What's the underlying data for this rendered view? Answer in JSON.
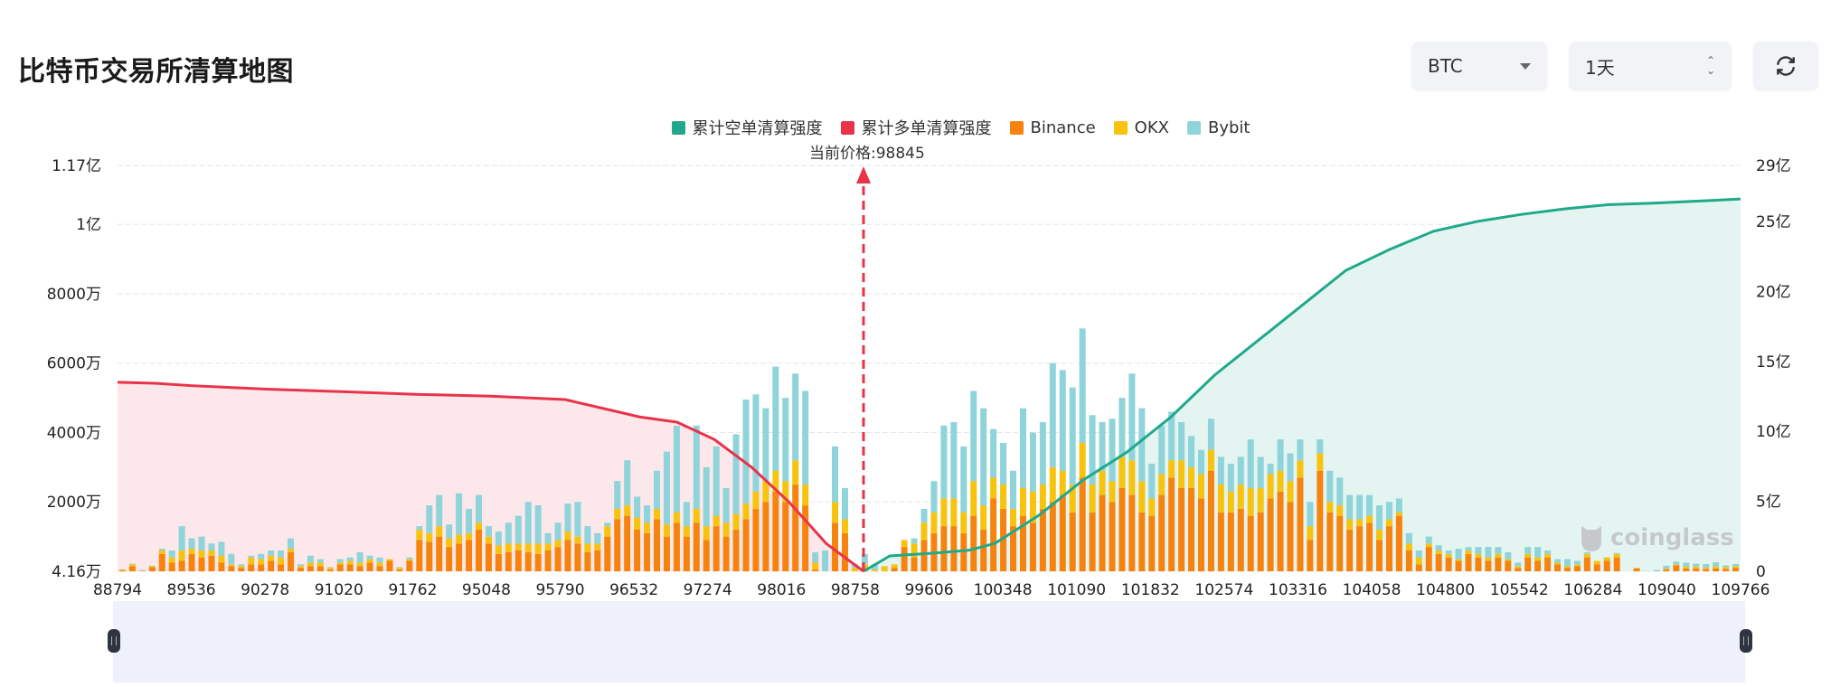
{
  "header": {
    "title": "比特币交易所清算地图",
    "coin_select": {
      "value": "BTC",
      "icon": "caret-down-icon"
    },
    "range_select": {
      "value": "1天",
      "icon": "stepper-icon"
    },
    "refresh_button": {
      "icon": "refresh-icon"
    }
  },
  "legend": [
    {
      "label": "累计空单清算强度",
      "color": "#1fa98a"
    },
    {
      "label": "累计多单清算强度",
      "color": "#e8334a"
    },
    {
      "label": "Binance",
      "color": "#f7830f"
    },
    {
      "label": "OKX",
      "color": "#f7c30f"
    },
    {
      "label": "Bybit",
      "color": "#8ed4da"
    }
  ],
  "current_price_label": "当前价格:98845",
  "watermark": "coinglass",
  "chart_data": {
    "type": "bar",
    "title": "比特币交易所清算地图",
    "current_price": 98845,
    "left_axis": {
      "ticks": [
        "4.16万",
        "2000万",
        "4000万",
        "6000万",
        "8000万",
        "1亿",
        "1.17亿"
      ],
      "range": [
        41600,
        117000000
      ]
    },
    "right_axis": {
      "ticks": [
        "0",
        "5亿",
        "10亿",
        "15亿",
        "20亿",
        "25亿",
        "29亿"
      ],
      "range": [
        0,
        2900000000
      ]
    },
    "x_tick_labels": [
      "88794",
      "89536",
      "90278",
      "91020",
      "91762",
      "95048",
      "95790",
      "96532",
      "97274",
      "98016",
      "98758",
      "99606",
      "100348",
      "101090",
      "101832",
      "102574",
      "103316",
      "104058",
      "104800",
      "105542",
      "106284",
      "109040",
      "109766"
    ],
    "stacked_series_units": "万 (10k USD)",
    "bars": {
      "binance": [
        0.3,
        1.5,
        0.1,
        1.2,
        5,
        2.5,
        3,
        5,
        4,
        4.5,
        2.5,
        1.5,
        1,
        2,
        2,
        3,
        2,
        5.5,
        1,
        1.5,
        1.5,
        0.5,
        2,
        2,
        1.5,
        2.5,
        1.5,
        3,
        0.5,
        3,
        9,
        8.5,
        10,
        7,
        8,
        9,
        12,
        8,
        5,
        5.5,
        6,
        5.5,
        5,
        6,
        7,
        9,
        8,
        5.5,
        6,
        10,
        15,
        16,
        12,
        11,
        15,
        10,
        14,
        10,
        14,
        9,
        13,
        10,
        12,
        15,
        18,
        20,
        23,
        20,
        25,
        19,
        0.5,
        0,
        14,
        11,
        0,
        1,
        0,
        0,
        1,
        7,
        4,
        9,
        11,
        13,
        13,
        11,
        16,
        12,
        21,
        18,
        13,
        16,
        14,
        18,
        20,
        22,
        17,
        27,
        17,
        22,
        20,
        24,
        22,
        17,
        16,
        22,
        27,
        24,
        24,
        21,
        29,
        17,
        17,
        18,
        16,
        17,
        21,
        23,
        20,
        27,
        9,
        29,
        17,
        16,
        12,
        13,
        14,
        9,
        13,
        16,
        6,
        2,
        7,
        5,
        4,
        3,
        5,
        4,
        3,
        4,
        3,
        1,
        4,
        3,
        4,
        2,
        1,
        1.5,
        4,
        2,
        3,
        4,
        0,
        0.8,
        0,
        0,
        0.5,
        1.7,
        0.8,
        0.8,
        0.6,
        0.8,
        0.7,
        1
      ],
      "okx": [
        0.2,
        0.5,
        0.1,
        0.3,
        1,
        1.5,
        3,
        1.5,
        2,
        1.5,
        2,
        0.5,
        0.5,
        2,
        1.5,
        1.5,
        2,
        1,
        0.5,
        1,
        1,
        0.5,
        0.5,
        1,
        1,
        1,
        1,
        0.5,
        0.5,
        0.5,
        3,
        2.5,
        3,
        2.5,
        2.5,
        2,
        2,
        2,
        2.5,
        2.5,
        2,
        2.5,
        3,
        2,
        2,
        2.5,
        2,
        2.5,
        2,
        3,
        3,
        3,
        3.5,
        3,
        3,
        3.5,
        3,
        3,
        4,
        4,
        3,
        4,
        4.5,
        4.5,
        5,
        6,
        6,
        6,
        7,
        6,
        2,
        0,
        6,
        4,
        1,
        1,
        0.5,
        1.5,
        1,
        2,
        4,
        5,
        6,
        8,
        8,
        6,
        10,
        7,
        6,
        7,
        5,
        8,
        9,
        7,
        10,
        7,
        8,
        10,
        8,
        7,
        6,
        9,
        10,
        9,
        5,
        6,
        5,
        8,
        6,
        7,
        6,
        8,
        6,
        7,
        8,
        7,
        7,
        6,
        6,
        5,
        4,
        5,
        3,
        3,
        3,
        2,
        2,
        3,
        2,
        1,
        2,
        2,
        1,
        1,
        1,
        0.5,
        1,
        1,
        1,
        1,
        0.5,
        0.5,
        1,
        1,
        1,
        0.5,
        0.5,
        0.5,
        1,
        1,
        1,
        1,
        0,
        0.2,
        0,
        0,
        0.3,
        0.3,
        0.5,
        0.6,
        0.5,
        0.6,
        0.5,
        0.5
      ],
      "bybit": [
        0.1,
        0.2,
        0.2,
        0.1,
        0.5,
        2,
        7,
        3,
        4,
        2,
        4,
        3,
        0.5,
        0.5,
        1.5,
        1.5,
        2,
        3,
        0.5,
        2,
        1,
        0.2,
        1,
        1,
        3,
        1,
        1.5,
        0,
        0.2,
        0.5,
        1,
        8,
        9,
        4,
        12,
        7,
        8,
        3,
        4,
        6,
        8,
        12,
        11,
        3,
        5,
        8,
        10,
        5,
        3,
        1,
        8,
        13,
        6,
        5,
        11,
        21,
        25,
        7,
        24,
        17,
        20,
        10,
        23,
        30,
        28,
        21,
        30,
        24,
        25,
        27,
        3,
        6,
        16,
        9,
        1,
        3,
        1.5,
        0,
        0,
        0,
        1.5,
        4,
        9,
        21,
        22,
        19,
        26,
        28,
        14,
        12,
        11,
        23,
        17,
        18,
        30,
        29,
        28,
        33,
        20,
        14,
        18,
        17,
        25,
        21,
        10,
        14,
        14,
        11,
        9,
        7,
        9,
        8,
        8,
        8,
        14,
        9,
        3,
        9,
        8,
        6,
        7,
        4,
        9,
        8,
        7,
        7,
        6,
        7,
        5,
        4,
        3,
        2,
        2,
        1.5,
        1,
        3,
        1,
        2,
        3,
        2,
        2,
        1,
        2,
        3,
        1,
        1,
        2,
        1,
        0.5,
        0,
        0,
        0.3,
        0,
        0,
        0.1,
        0.4,
        0.8,
        0.8,
        1.2,
        0.8,
        1,
        1.2,
        0.5,
        0.6
      ]
    },
    "long_cumulative_line": {
      "color": "#e8334a",
      "desc": "declines from ~5450万 at 88794 to 0 at 98845"
    },
    "short_cumulative_line": {
      "color": "#1fa98a",
      "desc": "rises from 0 at 98845 to ~26.5亿 at 109766"
    }
  }
}
